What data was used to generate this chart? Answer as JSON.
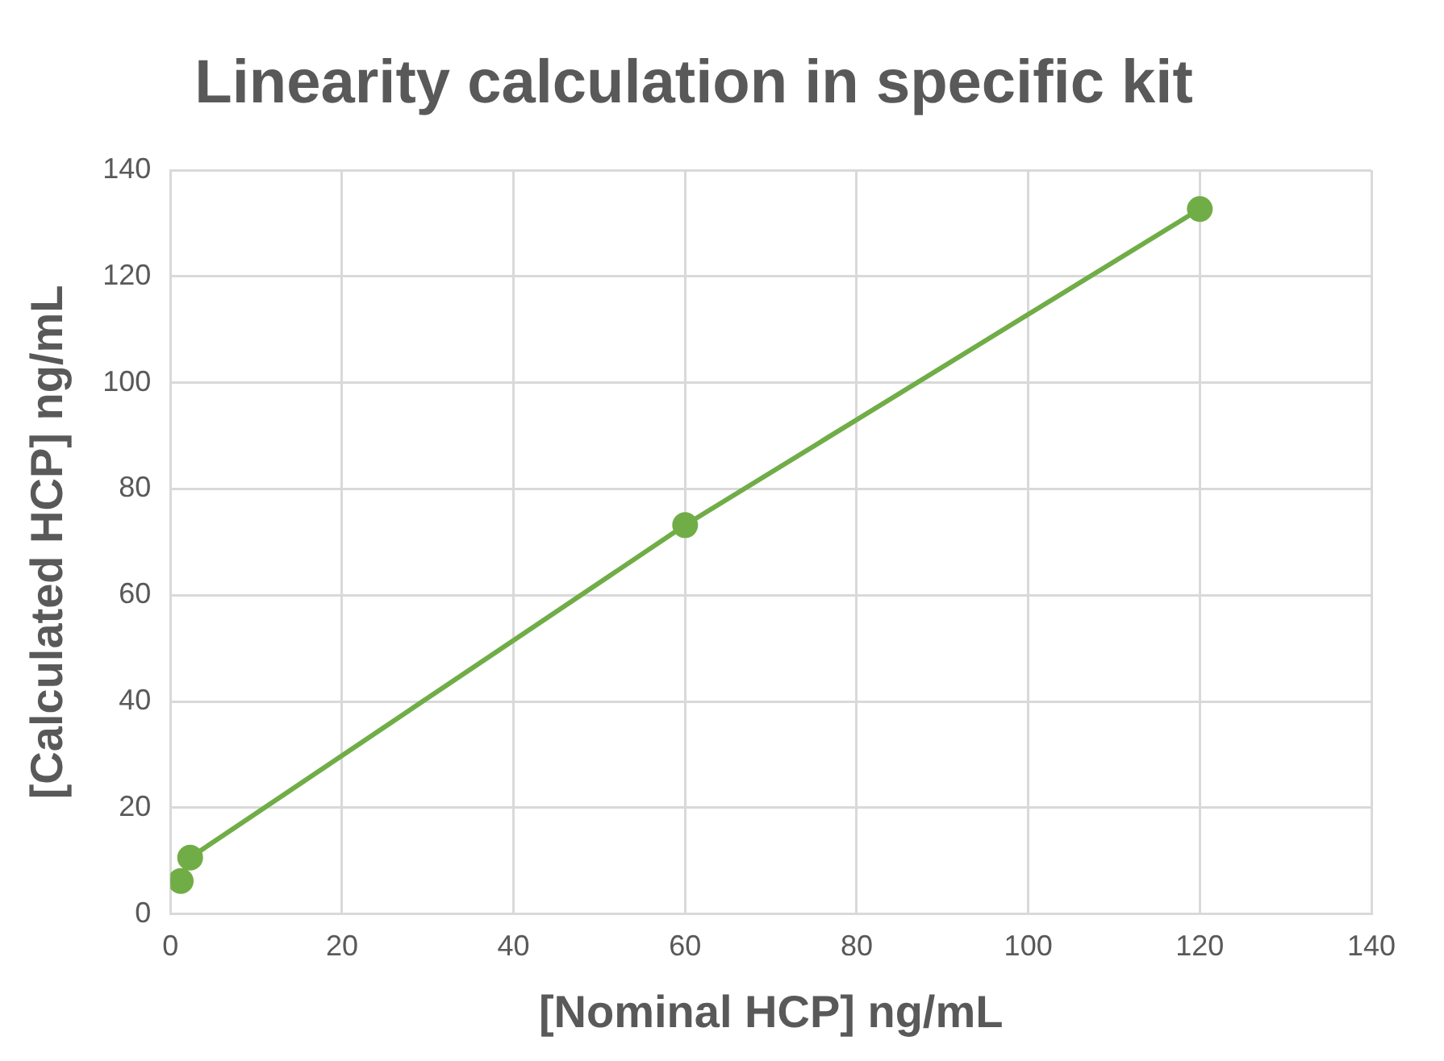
{
  "chart_data": {
    "type": "line",
    "title": "Linearity calculation in specific kit",
    "xlabel": "[Nominal HCP] ng/mL",
    "ylabel": "[Calculated HCP] ng/mL",
    "x": [
      1.2,
      2.3,
      60,
      120
    ],
    "series": [
      {
        "color": "#70ad47",
        "values": [
          6.2,
          10.6,
          73.2,
          132.7
        ]
      }
    ],
    "xlim": [
      0,
      140
    ],
    "xticks": [
      0,
      20,
      40,
      60,
      80,
      100,
      120,
      140
    ],
    "ylim": [
      0,
      140
    ],
    "yticks": [
      0,
      20,
      40,
      60,
      80,
      100,
      120,
      140
    ],
    "grid": true,
    "legend": false,
    "marker": "circle",
    "line_style": "solid"
  }
}
